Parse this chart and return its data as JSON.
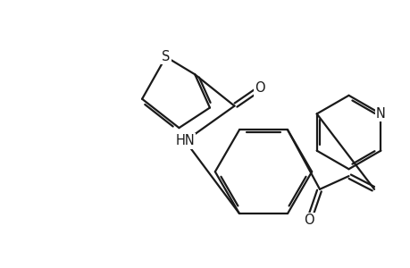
{
  "background_color": "#ffffff",
  "line_color": "#1a1a1a",
  "line_width": 1.6,
  "font_size_atoms": 10.5,
  "figure_width": 4.6,
  "figure_height": 3.0,
  "dpi": 100,
  "xlim": [
    0,
    10
  ],
  "ylim": [
    0,
    6.5
  ]
}
